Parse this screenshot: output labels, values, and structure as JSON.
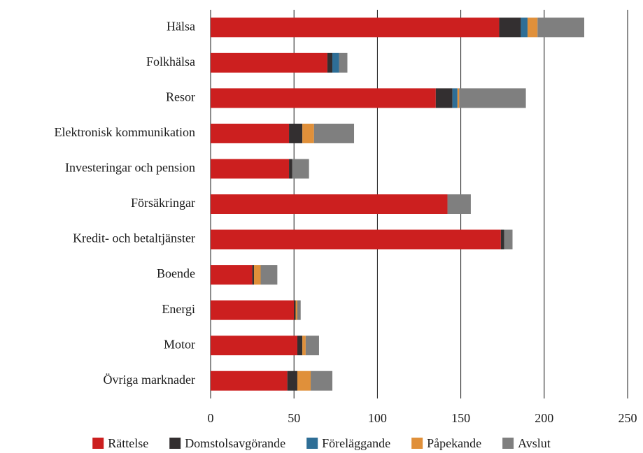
{
  "chart_data": {
    "type": "bar",
    "orientation": "horizontal",
    "stacked": true,
    "categories": [
      "Hälsa",
      "Folkhälsa",
      "Resor",
      "Elektronisk kommunikation",
      "Investeringar och pension",
      "Försäkringar",
      "Kredit- och betaltjänster",
      "Boende",
      "Energi",
      "Motor",
      "Övriga marknader"
    ],
    "series": [
      {
        "name": "Rättelse",
        "color": "#cc1f1f",
        "values": [
          173,
          70,
          135,
          47,
          47,
          142,
          174,
          25,
          50,
          52,
          46
        ]
      },
      {
        "name": "Domstolsavgörande",
        "color": "#332f30",
        "values": [
          13,
          3,
          10,
          8,
          2,
          0,
          2,
          1,
          1,
          3,
          6
        ]
      },
      {
        "name": "Föreläggande",
        "color": "#2e6e96",
        "values": [
          4,
          4,
          3,
          0,
          0,
          0,
          0,
          0,
          0,
          0,
          0
        ]
      },
      {
        "name": "Påpekande",
        "color": "#e0903a",
        "values": [
          6,
          0,
          1,
          7,
          0,
          0,
          0,
          4,
          1,
          2,
          8
        ]
      },
      {
        "name": "Avslut",
        "color": "#7f7f7f",
        "values": [
          28,
          5,
          40,
          24,
          10,
          14,
          5,
          10,
          2,
          8,
          13
        ]
      }
    ],
    "xlim": [
      0,
      250
    ],
    "xticks": [
      0,
      50,
      100,
      150,
      200,
      250
    ],
    "grid": true,
    "legend": "bottom"
  }
}
